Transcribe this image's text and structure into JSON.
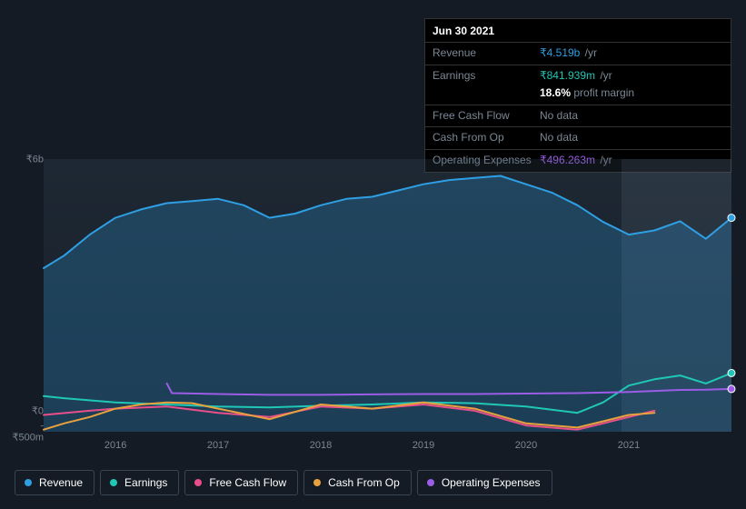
{
  "tooltip": {
    "date": "Jun 30 2021",
    "rows": [
      {
        "label": "Revenue",
        "amount": "₹4.519b",
        "unit": "/yr",
        "color": "#2f9fe4",
        "nodata": false,
        "extra": ""
      },
      {
        "label": "Earnings",
        "amount": "₹841.939m",
        "unit": "/yr",
        "color": "#1fc7b6",
        "nodata": false,
        "extra": "18.6% profit margin"
      },
      {
        "label": "Free Cash Flow",
        "amount": "",
        "unit": "",
        "color": "#e84f8a",
        "nodata": true,
        "extra": ""
      },
      {
        "label": "Cash From Op",
        "amount": "",
        "unit": "",
        "color": "#e8a23d",
        "nodata": true,
        "extra": ""
      },
      {
        "label": "Operating Expenses",
        "amount": "₹496.263m",
        "unit": "/yr",
        "color": "#9b5de5",
        "nodata": false,
        "extra": ""
      }
    ],
    "nodata_text": "No data",
    "extra_color": "#7b8794"
  },
  "chart": {
    "type": "line",
    "background_color": "#141b24",
    "plot_bg_gradient_top": "rgba(60,80,100,0.25)",
    "plot_bg_gradient_bottom": "rgba(60,80,100,0.05)",
    "forecast_band_start_x": 0.84,
    "forecast_band_color": "rgba(140,160,180,0.12)",
    "ylim": [
      -500,
      6000
    ],
    "yticks": [
      {
        "v": 6000,
        "label": "₹6b"
      },
      {
        "v": 0,
        "label": "₹0"
      },
      {
        "v": -500,
        "label": "-₹500m"
      }
    ],
    "xlim_years": [
      2015.3,
      2022.0
    ],
    "xticks": [
      2016,
      2017,
      2018,
      2019,
      2020,
      2021
    ],
    "line_width": 2,
    "series": [
      {
        "name": "Revenue",
        "color": "#2f9fe4",
        "fill_opacity": 0.25,
        "fill": true,
        "points": [
          [
            2015.3,
            3400
          ],
          [
            2015.5,
            3700
          ],
          [
            2015.75,
            4200
          ],
          [
            2016.0,
            4600
          ],
          [
            2016.25,
            4800
          ],
          [
            2016.5,
            4950
          ],
          [
            2016.75,
            5000
          ],
          [
            2017.0,
            5050
          ],
          [
            2017.25,
            4900
          ],
          [
            2017.5,
            4600
          ],
          [
            2017.75,
            4700
          ],
          [
            2018.0,
            4900
          ],
          [
            2018.25,
            5050
          ],
          [
            2018.5,
            5100
          ],
          [
            2018.75,
            5250
          ],
          [
            2019.0,
            5400
          ],
          [
            2019.25,
            5500
          ],
          [
            2019.5,
            5550
          ],
          [
            2019.75,
            5600
          ],
          [
            2020.0,
            5400
          ],
          [
            2020.25,
            5200
          ],
          [
            2020.5,
            4900
          ],
          [
            2020.75,
            4500
          ],
          [
            2021.0,
            4200
          ],
          [
            2021.25,
            4300
          ],
          [
            2021.5,
            4519
          ],
          [
            2021.75,
            4100
          ],
          [
            2022.0,
            4600
          ]
        ]
      },
      {
        "name": "Earnings",
        "color": "#1fc7b6",
        "fill": false,
        "points": [
          [
            2015.3,
            350
          ],
          [
            2015.5,
            300
          ],
          [
            2016.0,
            200
          ],
          [
            2016.5,
            150
          ],
          [
            2017.0,
            100
          ],
          [
            2017.5,
            80
          ],
          [
            2018.0,
            120
          ],
          [
            2018.5,
            150
          ],
          [
            2019.0,
            200
          ],
          [
            2019.5,
            180
          ],
          [
            2020.0,
            100
          ],
          [
            2020.5,
            -50
          ],
          [
            2020.75,
            200
          ],
          [
            2021.0,
            600
          ],
          [
            2021.25,
            750
          ],
          [
            2021.5,
            842
          ],
          [
            2021.75,
            650
          ],
          [
            2022.0,
            900
          ]
        ]
      },
      {
        "name": "Free Cash Flow",
        "color": "#e84f8a",
        "fill": false,
        "points": [
          [
            2015.3,
            -100
          ],
          [
            2015.75,
            0
          ],
          [
            2016.0,
            50
          ],
          [
            2016.5,
            100
          ],
          [
            2017.0,
            -50
          ],
          [
            2017.5,
            -150
          ],
          [
            2018.0,
            100
          ],
          [
            2018.5,
            50
          ],
          [
            2019.0,
            150
          ],
          [
            2019.5,
            0
          ],
          [
            2020.0,
            -350
          ],
          [
            2020.5,
            -450
          ],
          [
            2020.75,
            -300
          ],
          [
            2021.0,
            -150
          ],
          [
            2021.25,
            0
          ]
        ]
      },
      {
        "name": "Cash From Op",
        "color": "#e8a23d",
        "fill": false,
        "points": [
          [
            2015.3,
            -450
          ],
          [
            2015.5,
            -300
          ],
          [
            2015.75,
            -150
          ],
          [
            2016.0,
            50
          ],
          [
            2016.25,
            150
          ],
          [
            2016.5,
            200
          ],
          [
            2016.75,
            180
          ],
          [
            2017.0,
            50
          ],
          [
            2017.5,
            -200
          ],
          [
            2018.0,
            150
          ],
          [
            2018.5,
            50
          ],
          [
            2019.0,
            200
          ],
          [
            2019.5,
            50
          ],
          [
            2020.0,
            -300
          ],
          [
            2020.5,
            -400
          ],
          [
            2020.75,
            -250
          ],
          [
            2021.0,
            -100
          ],
          [
            2021.25,
            -50
          ]
        ]
      },
      {
        "name": "Operating Expenses",
        "color": "#9b5de5",
        "fill": false,
        "points": [
          [
            2016.5,
            650
          ],
          [
            2016.55,
            420
          ],
          [
            2017.0,
            400
          ],
          [
            2017.5,
            380
          ],
          [
            2018.0,
            380
          ],
          [
            2018.5,
            390
          ],
          [
            2019.0,
            400
          ],
          [
            2019.5,
            400
          ],
          [
            2020.0,
            410
          ],
          [
            2020.5,
            420
          ],
          [
            2021.0,
            450
          ],
          [
            2021.5,
            496
          ],
          [
            2021.75,
            500
          ],
          [
            2022.0,
            520
          ]
        ],
        "endpoint_marker": true
      }
    ],
    "endpoint_markers": [
      {
        "series": "Revenue",
        "x": 2022.0,
        "y": 4600,
        "color": "#2f9fe4"
      },
      {
        "series": "Earnings",
        "x": 2022.0,
        "y": 900,
        "color": "#1fc7b6"
      },
      {
        "series": "Operating Expenses",
        "x": 2022.0,
        "y": 520,
        "color": "#9b5de5"
      }
    ],
    "grid_visible": false
  },
  "legend": {
    "items": [
      {
        "label": "Revenue",
        "color": "#2f9fe4"
      },
      {
        "label": "Earnings",
        "color": "#1fc7b6"
      },
      {
        "label": "Free Cash Flow",
        "color": "#e84f8a"
      },
      {
        "label": "Cash From Op",
        "color": "#e8a23d"
      },
      {
        "label": "Operating Expenses",
        "color": "#9b5de5"
      }
    ],
    "border_color": "#3a4553",
    "text_color": "#ffffff",
    "font_size": 12
  }
}
